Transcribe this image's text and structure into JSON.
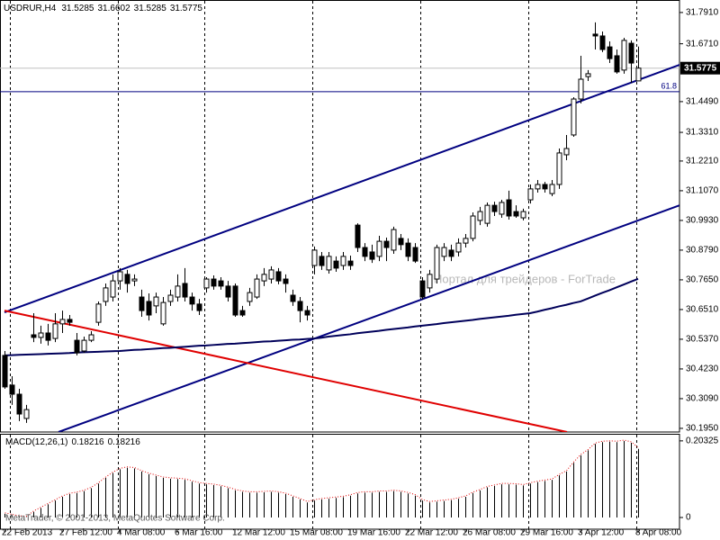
{
  "chart_data": [
    {
      "type": "candlestick",
      "title": "USDRUR,H4",
      "title_values": [
        31.5285,
        31.6602,
        31.5285,
        31.5775
      ],
      "categories": [
        "22 Feb 2013",
        null,
        null,
        null,
        null,
        null,
        null,
        null,
        "27 Feb 12:00",
        null,
        null,
        null,
        null,
        null,
        null,
        null,
        "4 Mar 08:00",
        null,
        null,
        null,
        null,
        null,
        null,
        null,
        "6 Mar 16:00",
        null,
        null,
        null,
        null,
        null,
        null,
        null,
        "12 Mar 12:00",
        null,
        null,
        null,
        null,
        null,
        null,
        null,
        "15 Mar 08:00",
        null,
        null,
        null,
        null,
        null,
        null,
        null,
        "19 Mar 16:00",
        null,
        null,
        null,
        null,
        null,
        null,
        null,
        "22 Mar 12:00",
        null,
        null,
        null,
        null,
        null,
        null,
        null,
        "26 Mar 08:00",
        null,
        null,
        null,
        null,
        null,
        null,
        null,
        "29 Mar 16:00",
        null,
        null,
        null,
        null,
        null,
        null,
        null,
        "3 Apr 12:00",
        null,
        null,
        null,
        null,
        null,
        null,
        null,
        "8 Apr 08:00"
      ],
      "ohlc": [
        [
          30.475,
          30.492,
          30.347,
          30.354
        ],
        [
          30.361,
          30.395,
          30.285,
          30.326
        ],
        [
          30.326,
          30.347,
          30.223,
          30.25
        ],
        [
          30.233,
          30.285,
          30.216,
          30.267
        ],
        [
          30.554,
          30.637,
          30.526,
          30.544
        ],
        [
          30.544,
          30.589,
          30.52,
          30.561
        ],
        [
          30.561,
          30.596,
          30.513,
          30.533
        ],
        [
          30.54,
          30.637,
          30.526,
          30.596
        ],
        [
          30.596,
          30.647,
          30.561,
          30.613
        ],
        [
          30.613,
          30.63,
          30.589,
          30.602
        ],
        [
          30.533,
          30.561,
          30.475,
          30.485
        ],
        [
          30.492,
          30.547,
          30.485,
          30.533
        ],
        [
          30.533,
          30.568,
          30.526,
          30.554
        ],
        [
          30.602,
          30.682,
          30.589,
          30.672
        ],
        [
          30.682,
          30.751,
          30.665,
          30.734
        ],
        [
          30.699,
          30.786,
          30.682,
          30.761
        ],
        [
          30.761,
          30.81,
          30.727,
          30.796
        ],
        [
          30.786,
          30.803,
          30.716,
          30.751
        ],
        [
          30.761,
          30.786,
          30.741,
          30.768
        ],
        [
          30.699,
          30.727,
          30.623,
          30.647
        ],
        [
          30.682,
          30.713,
          30.609,
          30.63
        ],
        [
          30.665,
          30.716,
          30.637,
          30.699
        ],
        [
          30.596,
          30.699,
          30.589,
          30.678
        ],
        [
          30.682,
          30.727,
          30.665,
          30.706
        ],
        [
          30.699,
          30.786,
          30.682,
          30.741
        ],
        [
          30.751,
          30.81,
          30.682,
          30.699
        ],
        [
          30.699,
          30.716,
          30.647,
          30.672
        ],
        [
          30.672,
          30.692,
          30.63,
          30.647
        ],
        [
          30.734,
          30.775,
          30.716,
          30.768
        ],
        [
          30.768,
          30.782,
          30.727,
          30.741
        ],
        [
          30.761,
          30.775,
          30.727,
          30.741
        ],
        [
          30.741,
          30.761,
          30.682,
          30.699
        ],
        [
          30.741,
          30.751,
          30.623,
          30.63
        ],
        [
          30.647,
          30.665,
          30.623,
          30.63
        ],
        [
          30.682,
          30.734,
          30.665,
          30.716
        ],
        [
          30.699,
          30.786,
          30.692,
          30.768
        ],
        [
          30.761,
          30.81,
          30.741,
          30.786
        ],
        [
          30.768,
          30.817,
          30.751,
          30.803
        ],
        [
          30.796,
          30.81,
          30.748,
          30.761
        ],
        [
          30.768,
          30.786,
          30.716,
          30.751
        ],
        [
          30.706,
          30.727,
          30.665,
          30.682
        ],
        [
          30.682,
          30.699,
          30.602,
          30.647
        ],
        [
          30.647,
          30.665,
          30.609,
          30.63
        ],
        [
          30.82,
          30.893,
          30.786,
          30.879
        ],
        [
          30.855,
          30.872,
          30.803,
          30.82
        ],
        [
          30.803,
          30.872,
          30.789,
          30.855
        ],
        [
          30.837,
          30.855,
          30.796,
          30.81
        ],
        [
          30.82,
          30.872,
          30.803,
          30.855
        ],
        [
          30.837,
          30.858,
          30.803,
          30.82
        ],
        [
          30.975,
          30.982,
          30.872,
          30.889
        ],
        [
          30.889,
          30.906,
          30.837,
          30.855
        ],
        [
          30.872,
          30.9,
          30.83,
          30.844
        ],
        [
          30.855,
          30.934,
          30.837,
          30.913
        ],
        [
          30.913,
          30.927,
          30.837,
          30.889
        ],
        [
          30.879,
          30.969,
          30.865,
          30.958
        ],
        [
          30.924,
          30.941,
          30.879,
          30.9
        ],
        [
          30.906,
          30.924,
          30.837,
          30.855
        ],
        [
          30.889,
          30.906,
          30.83,
          30.837
        ],
        [
          30.761,
          30.775,
          30.689,
          30.699
        ],
        [
          30.734,
          30.803,
          30.716,
          30.786
        ],
        [
          30.768,
          30.9,
          30.751,
          30.889
        ],
        [
          30.855,
          30.906,
          30.837,
          30.889
        ],
        [
          30.879,
          30.9,
          30.837,
          30.855
        ],
        [
          30.872,
          30.924,
          30.855,
          30.906
        ],
        [
          30.906,
          30.941,
          30.889,
          30.924
        ],
        [
          30.924,
          31.024,
          30.913,
          31.01
        ],
        [
          30.993,
          31.045,
          30.975,
          31.027
        ],
        [
          30.982,
          31.062,
          30.969,
          31.051
        ],
        [
          31.051,
          31.065,
          31.01,
          31.027
        ],
        [
          31.017,
          31.072,
          31.003,
          31.062
        ],
        [
          31.072,
          31.107,
          30.996,
          31.01
        ],
        [
          31.027,
          31.051,
          31.003,
          31.01
        ],
        [
          31.003,
          31.038,
          30.993,
          31.027
        ],
        [
          31.072,
          31.131,
          31.058,
          31.114
        ],
        [
          31.114,
          31.148,
          31.1,
          31.131
        ],
        [
          31.131,
          31.141,
          31.1,
          31.114
        ],
        [
          31.096,
          31.148,
          31.086,
          31.131
        ],
        [
          31.131,
          31.269,
          31.114,
          31.252
        ],
        [
          31.245,
          31.321,
          31.224,
          31.269
        ],
        [
          31.321,
          31.466,
          31.314,
          31.459
        ],
        [
          31.459,
          31.625,
          31.442,
          31.535
        ],
        [
          31.545,
          31.57,
          31.528,
          31.556
        ],
        [
          31.708,
          31.753,
          31.649,
          31.701
        ],
        [
          31.701,
          31.718,
          31.639,
          31.649
        ],
        [
          31.659,
          31.68,
          31.597,
          31.614
        ],
        [
          31.625,
          31.649,
          31.556,
          31.563
        ],
        [
          31.57,
          31.694,
          31.556,
          31.684
        ],
        [
          31.673,
          31.684,
          31.521,
          31.597
        ],
        [
          31.5285,
          31.6602,
          31.5285,
          31.5775
        ]
      ],
      "up_color": "#ffffff",
      "down_color": "#000000",
      "outline_color": "#000000",
      "ma": {
        "color": "#00005a",
        "values": [
          30.475,
          30.476,
          30.477,
          30.478,
          30.479,
          30.48,
          30.481,
          30.482,
          30.483,
          30.484,
          30.486,
          30.487,
          30.488,
          30.489,
          30.49,
          30.491,
          30.492,
          30.494,
          30.496,
          30.497,
          30.499,
          30.501,
          30.503,
          30.504,
          30.506,
          30.508,
          30.51,
          30.512,
          30.513,
          30.515,
          30.517,
          30.519,
          30.52,
          30.522,
          30.524,
          30.526,
          30.528,
          30.529,
          30.531,
          30.533,
          30.535,
          30.536,
          30.538,
          30.54,
          30.543,
          30.547,
          30.55,
          30.553,
          30.556,
          30.56,
          30.563,
          30.566,
          30.569,
          30.573,
          30.576,
          30.579,
          30.582,
          30.586,
          30.589,
          30.592,
          30.595,
          30.599,
          30.602,
          30.605,
          30.608,
          30.611,
          30.615,
          30.618,
          30.621,
          30.624,
          30.627,
          30.631,
          30.634,
          30.637,
          30.643,
          30.65,
          30.656,
          30.663,
          30.669,
          30.676,
          30.682,
          30.693,
          30.704,
          30.715,
          30.725,
          30.736,
          30.747,
          30.758,
          30.769
        ]
      },
      "trendlines": [
        {
          "color": "#000080",
          "points": [
            [
              0,
              30.64
            ],
            [
              93.75,
              31.59
            ]
          ]
        },
        {
          "color": "#000080",
          "points": [
            [
              7.5,
              30.181
            ],
            [
              93.75,
              31.051
            ]
          ]
        },
        {
          "color": "#e00000",
          "points": [
            [
              0,
              30.647
            ],
            [
              78.125,
              30.181
            ]
          ]
        }
      ],
      "current_price": 31.5775,
      "fib_level": 61.8,
      "fib_price": 31.487,
      "ylim": [
        30.181,
        31.839
      ],
      "yticks": [
        {
          "value": 31.791,
          "label": "31.7910"
        },
        {
          "value": 31.671,
          "label": "31.6710"
        },
        {
          "value": 31.449,
          "label": "31.4490"
        },
        {
          "value": 31.331,
          "label": "31.3310"
        },
        {
          "value": 31.221,
          "label": "31.2210"
        },
        {
          "value": 31.107,
          "label": "31.1070"
        },
        {
          "value": 30.993,
          "label": "30.9930"
        },
        {
          "value": 30.879,
          "label": "30.8790"
        },
        {
          "value": 30.765,
          "label": "30.7650"
        },
        {
          "value": 30.651,
          "label": "30.6510"
        },
        {
          "value": 30.537,
          "label": "30.5370"
        },
        {
          "value": 30.423,
          "label": "30.4230"
        },
        {
          "value": 30.309,
          "label": "30.3090"
        },
        {
          "value": 30.195,
          "label": "30.1950"
        }
      ],
      "grid": true,
      "watermark": "Портал для трейдеров - ForTrade"
    },
    {
      "type": "bar",
      "title": "MACD(12,26,1)",
      "title_values": [
        0.18216,
        0.18216
      ],
      "color": "#000000",
      "signal_color": "#e00000",
      "values": [
        0.01,
        0.006,
        0.002,
        0.001,
        0.015,
        0.025,
        0.035,
        0.045,
        0.055,
        0.062,
        0.065,
        0.07,
        0.078,
        0.09,
        0.105,
        0.118,
        0.128,
        0.132,
        0.13,
        0.122,
        0.115,
        0.11,
        0.105,
        0.103,
        0.102,
        0.1,
        0.095,
        0.09,
        0.088,
        0.086,
        0.083,
        0.078,
        0.072,
        0.068,
        0.066,
        0.066,
        0.067,
        0.068,
        0.066,
        0.062,
        0.055,
        0.048,
        0.04,
        0.045,
        0.048,
        0.05,
        0.052,
        0.054,
        0.058,
        0.064,
        0.066,
        0.066,
        0.068,
        0.068,
        0.07,
        0.068,
        0.064,
        0.058,
        0.045,
        0.04,
        0.042,
        0.044,
        0.046,
        0.05,
        0.055,
        0.065,
        0.072,
        0.08,
        0.084,
        0.088,
        0.088,
        0.087,
        0.085,
        0.09,
        0.094,
        0.097,
        0.1,
        0.112,
        0.122,
        0.145,
        0.165,
        0.178,
        0.195,
        0.2,
        0.201,
        0.2,
        0.203,
        0.198,
        0.18216
      ],
      "ylim": [
        -0.031,
        0.222
      ],
      "yticks": [
        0.20325,
        0
      ],
      "copyright": "MetaTrader, © 2001-2013, MetaQuotes Software Corp."
    }
  ]
}
